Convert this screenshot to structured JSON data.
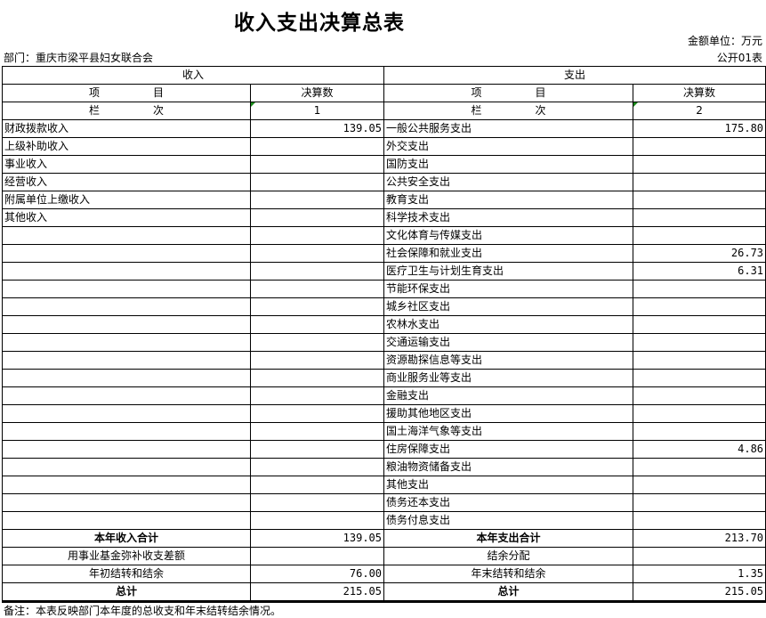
{
  "title": "收入支出决算总表",
  "unit": "金额单位：万元",
  "department": "部门：重庆市梁平县妇女联合会",
  "table_code": "公开01表",
  "header": {
    "income": "收入",
    "expense": "支出",
    "item": "项　　　　　目",
    "amount": "决算数",
    "column": "栏　　　　　次",
    "col1": "1",
    "col2": "2"
  },
  "rows": [
    {
      "in": "财政拨款收入",
      "in_val": "139.05",
      "out": "一般公共服务支出",
      "out_val": "175.80"
    },
    {
      "in": "上级补助收入",
      "in_val": "",
      "out": "外交支出",
      "out_val": ""
    },
    {
      "in": "事业收入",
      "in_val": "",
      "out": "国防支出",
      "out_val": ""
    },
    {
      "in": "经营收入",
      "in_val": "",
      "out": "公共安全支出",
      "out_val": ""
    },
    {
      "in": "附属单位上缴收入",
      "in_val": "",
      "out": "教育支出",
      "out_val": ""
    },
    {
      "in": "其他收入",
      "in_val": "",
      "out": "科学技术支出",
      "out_val": ""
    },
    {
      "in": "",
      "in_val": "",
      "out": "文化体育与传媒支出",
      "out_val": ""
    },
    {
      "in": "",
      "in_val": "",
      "out": "社会保障和就业支出",
      "out_val": "26.73"
    },
    {
      "in": "",
      "in_val": "",
      "out": "医疗卫生与计划生育支出",
      "out_val": "6.31"
    },
    {
      "in": "",
      "in_val": "",
      "out": "节能环保支出",
      "out_val": ""
    },
    {
      "in": "",
      "in_val": "",
      "out": "城乡社区支出",
      "out_val": ""
    },
    {
      "in": "",
      "in_val": "",
      "out": "农林水支出",
      "out_val": ""
    },
    {
      "in": "",
      "in_val": "",
      "out": "交通运输支出",
      "out_val": ""
    },
    {
      "in": "",
      "in_val": "",
      "out": "资源勘探信息等支出",
      "out_val": ""
    },
    {
      "in": "",
      "in_val": "",
      "out": "商业服务业等支出",
      "out_val": ""
    },
    {
      "in": "",
      "in_val": "",
      "out": "金融支出",
      "out_val": ""
    },
    {
      "in": "",
      "in_val": "",
      "out": "援助其他地区支出",
      "out_val": ""
    },
    {
      "in": "",
      "in_val": "",
      "out": "国土海洋气象等支出",
      "out_val": ""
    },
    {
      "in": "",
      "in_val": "",
      "out": "住房保障支出",
      "out_val": "4.86"
    },
    {
      "in": "",
      "in_val": "",
      "out": "粮油物资储备支出",
      "out_val": ""
    },
    {
      "in": "",
      "in_val": "",
      "out": "其他支出",
      "out_val": ""
    },
    {
      "in": "",
      "in_val": "",
      "out": "债务还本支出",
      "out_val": ""
    },
    {
      "in": "",
      "in_val": "",
      "out": "债务付息支出",
      "out_val": ""
    }
  ],
  "summary": [
    {
      "in": "本年收入合计",
      "in_val": "139.05",
      "out": "本年支出合计",
      "out_val": "213.70",
      "bold": true
    },
    {
      "in": "用事业基金弥补收支差额",
      "in_val": "",
      "out": "结余分配",
      "out_val": "",
      "bold": false
    },
    {
      "in": "年初结转和结余",
      "in_val": "76.00",
      "out": "年末结转和结余",
      "out_val": "1.35",
      "bold": false
    },
    {
      "in": "总计",
      "in_val": "215.05",
      "out": "总计",
      "out_val": "215.05",
      "bold": true
    }
  ],
  "note": "备注：本表反映部门本年度的总收支和年末结转结余情况。"
}
